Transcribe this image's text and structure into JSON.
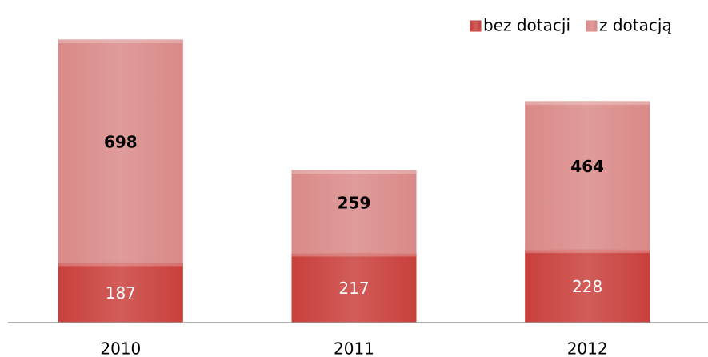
{
  "chart_data": {
    "type": "bar",
    "stacked": true,
    "categories": [
      "2010",
      "2011",
      "2012"
    ],
    "series": [
      {
        "name": "bez dotacji",
        "color": "#c9403c",
        "values": [
          187,
          217,
          228
        ]
      },
      {
        "name": "z dotacją",
        "color": "#d98a88",
        "values": [
          698,
          259,
          464
        ]
      }
    ],
    "legend": "top-right"
  }
}
